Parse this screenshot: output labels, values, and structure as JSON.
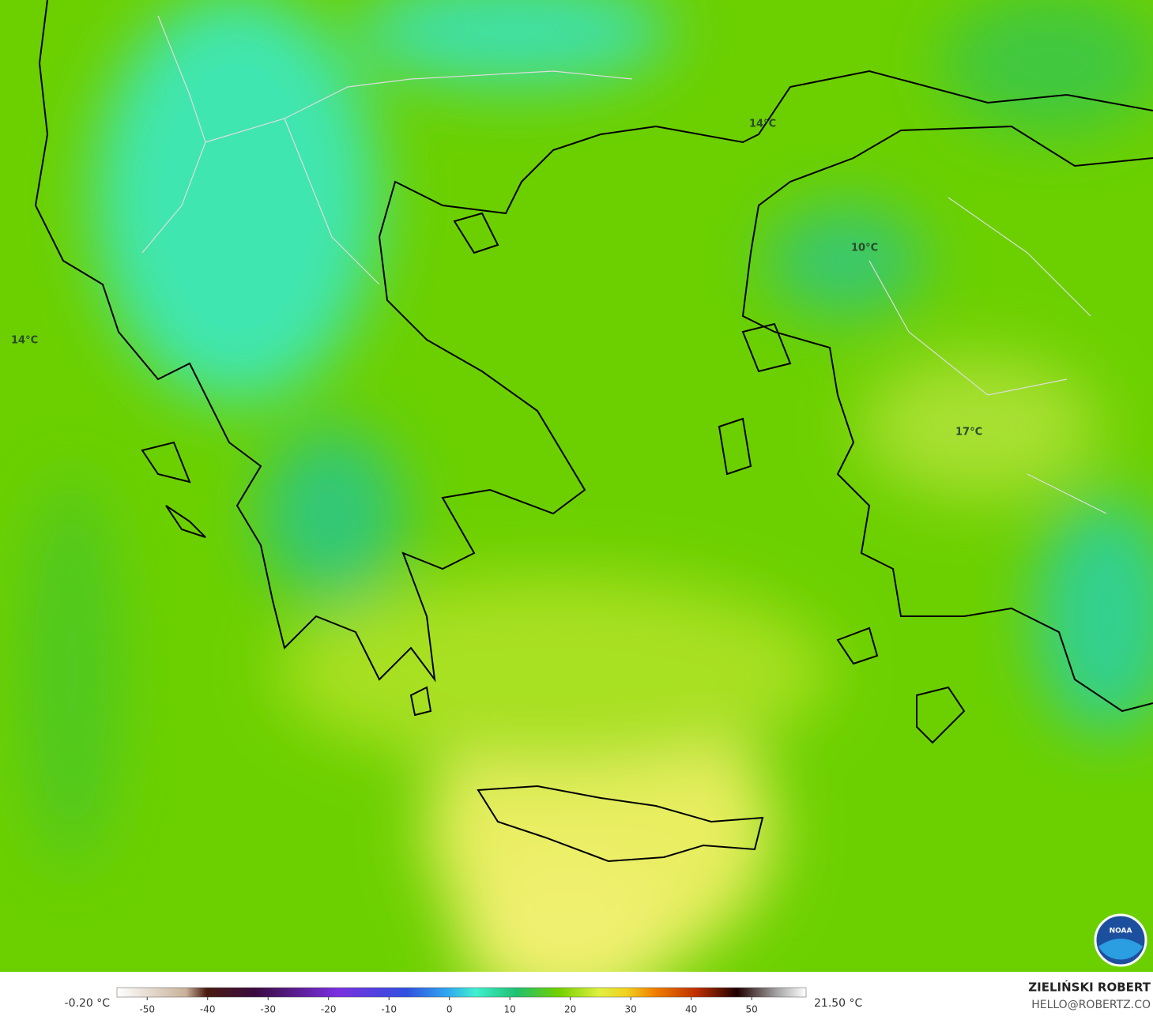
{
  "map": {
    "labels": [
      {
        "text": "14°C"
      },
      {
        "text": "10°C"
      },
      {
        "text": "17°C"
      },
      {
        "text": "14°C"
      }
    ]
  },
  "colorbar": {
    "min_label": "-0.20 °C",
    "max_label": "21.50 °C",
    "lim": [
      -55,
      59
    ],
    "ticks": [
      -50,
      -40,
      -30,
      -20,
      -10,
      0,
      10,
      20,
      30,
      40,
      50
    ]
  },
  "logo": {
    "text": "NOAA"
  },
  "credit": {
    "name": "ZIELIŃSKI ROBERT",
    "contact": "HELLO@ROBERTZ.CO"
  }
}
